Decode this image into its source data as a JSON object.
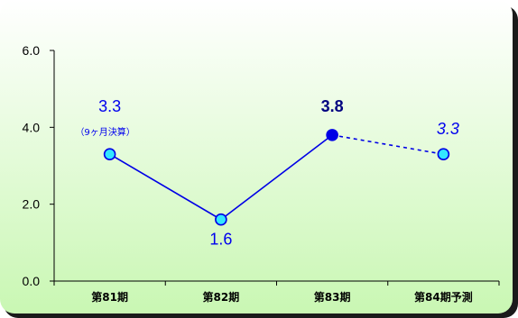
{
  "chart_data": {
    "type": "line",
    "categories": [
      "第81期",
      "第82期",
      "第83期",
      "第84期予測"
    ],
    "values": [
      3.3,
      1.6,
      3.8,
      3.3
    ],
    "value_labels": [
      "3.3",
      "1.6",
      "3.8",
      "3.3"
    ],
    "forecast_from_index": 2,
    "annotations": [
      {
        "category": "第81期",
        "text": "（9ヶ月決算）"
      }
    ],
    "ylim": [
      0,
      6
    ],
    "y_ticks": [
      "0.0",
      "2.0",
      "4.0",
      "6.0"
    ],
    "title": "",
    "xlabel": "",
    "ylabel": "",
    "grid": false,
    "colors": {
      "line": "#0000e6",
      "marker_fill": "#33e6ff",
      "actual_highlight_fill": "#0000e6",
      "background_top": "#ffffff",
      "background_bottom": "#c9f7b3",
      "frame_shadow": "#1a1a1a"
    }
  }
}
